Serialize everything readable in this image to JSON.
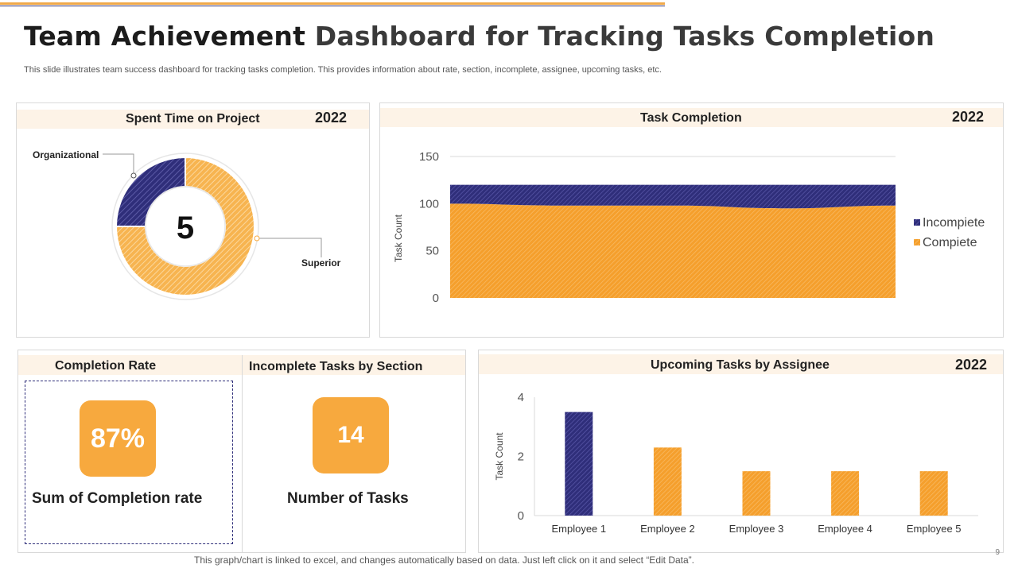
{
  "header": {
    "title_part1": "Team Achievement",
    "title_part2": "Dashboard for Tracking Tasks Completion",
    "subtitle": "This slide illustrates team success dashboard for tracking tasks completion. This provides information about rate, section, incomplete, assignee, upcoming tasks, etc."
  },
  "spent_time": {
    "title": "Spent Time on Project",
    "year": "2022",
    "center_value": "5",
    "label_organizational": "Organizational",
    "label_superior": "Superior"
  },
  "task_completion": {
    "title": "Task Completion",
    "year": "2022"
  },
  "completion_rate": {
    "title": "Completion Rate",
    "value": "87%",
    "caption": "Sum of Completion rate"
  },
  "incomplete_by_section": {
    "title": "Incomplete Tasks by Section",
    "value": "14",
    "caption": "Number of Tasks"
  },
  "upcoming": {
    "title": "Upcoming Tasks by Assignee",
    "year": "2022"
  },
  "footer": {
    "note": "This graph/chart is linked to excel, and changes automatically based on data. Just left click on it and select “Edit Data”.",
    "page_number": "9"
  },
  "colors": {
    "orange": "#f7a93e",
    "navy": "#2f2e7a",
    "band": "#fdf3e7"
  },
  "chart_data": [
    {
      "type": "pie",
      "title": "Spent Time on Project",
      "categories": [
        "Organizational",
        "Superior"
      ],
      "values": [
        1.25,
        3.75
      ],
      "center_label": "5"
    },
    {
      "type": "area",
      "title": "Task Completion",
      "ylabel": "Task Count",
      "ylim": [
        0,
        150
      ],
      "yticks": [
        "0",
        "50",
        "100",
        "150"
      ],
      "x": [
        1,
        2,
        3,
        4,
        5
      ],
      "series": [
        {
          "name": "Compiete",
          "values": [
            100,
            98,
            98,
            95,
            98
          ]
        },
        {
          "name": "Incompiete",
          "values": [
            20,
            22,
            22,
            25,
            22
          ]
        }
      ],
      "legend": [
        "Incompiete",
        "Compiete"
      ]
    },
    {
      "type": "bar",
      "title": "Upcoming Tasks by Assignee",
      "ylabel": "Task Count",
      "ylim": [
        0,
        4
      ],
      "yticks": [
        "0",
        "2",
        "4"
      ],
      "categories": [
        "Employee 1",
        "Employee 2",
        "Employee 3",
        "Employee 4",
        "Employee 5"
      ],
      "values": [
        3.5,
        2.3,
        1.5,
        1.5,
        1.5
      ],
      "bar_series": [
        "incomplete",
        "complete",
        "complete",
        "complete",
        "complete"
      ]
    }
  ]
}
